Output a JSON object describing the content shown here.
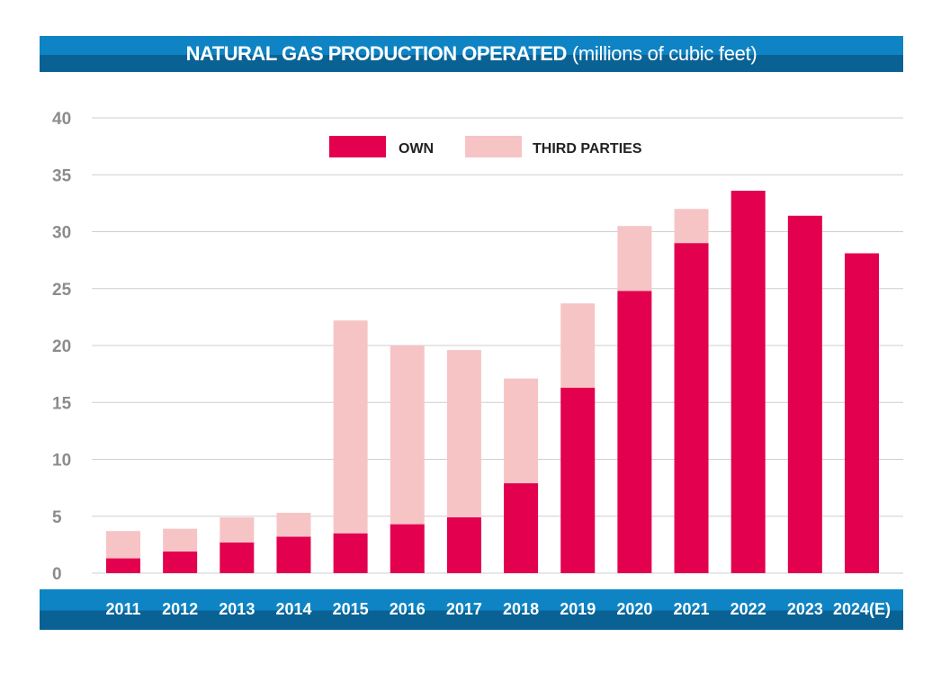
{
  "title": {
    "main": "NATURAL GAS PRODUCTION OPERATED",
    "unit": "(millions of cubic feet)"
  },
  "colors": {
    "own": "#e2004f",
    "third_parties": "#f7c4c6",
    "grid": "#cfcfcf",
    "band_light": "#0e84c4",
    "band_dark": "#0a6294",
    "tick_text": "#8c8c8c"
  },
  "chart_data": {
    "type": "bar",
    "stacked": true,
    "title": "NATURAL GAS PRODUCTION OPERATED (millions of cubic feet)",
    "categories": [
      "2011",
      "2012",
      "2013",
      "2014",
      "2015",
      "2016",
      "2017",
      "2018",
      "2019",
      "2020",
      "2021",
      "2022",
      "2023",
      "2024(E)"
    ],
    "series": [
      {
        "name": "OWN",
        "values": [
          1.3,
          1.9,
          2.7,
          3.2,
          3.5,
          4.3,
          4.9,
          7.9,
          16.3,
          24.8,
          29.0,
          33.6,
          31.4,
          28.1
        ]
      },
      {
        "name": "THIRD PARTIES",
        "values": [
          2.4,
          2.0,
          2.2,
          2.1,
          18.7,
          15.7,
          14.7,
          9.2,
          7.4,
          5.7,
          3.0,
          0,
          0,
          0
        ]
      }
    ],
    "yticks": [
      0,
      5,
      10,
      15,
      20,
      25,
      30,
      35,
      40
    ],
    "ylim": [
      0,
      40
    ],
    "grid": true,
    "legend_position": "top-center"
  }
}
